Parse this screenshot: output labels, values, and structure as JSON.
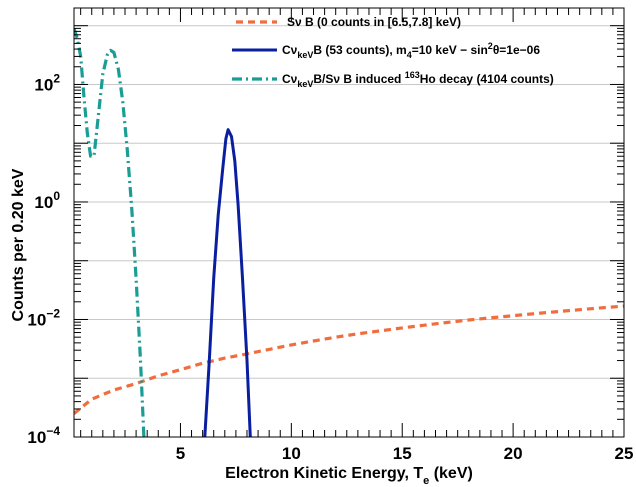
{
  "chart_data": {
    "type": "line",
    "xlabel": "Electron Kinetic Energy, T",
    "xlabel_sub": "e",
    "xlabel_unit": " (keV)",
    "ylabel": "Counts per 0.20 keV",
    "xlim": [
      0.2,
      25
    ],
    "ylim": [
      0.0001,
      2000
    ],
    "yscale": "log",
    "grid": "horizontal",
    "legend_position": "top-right",
    "x_ticks": [
      5,
      10,
      15,
      20,
      25
    ],
    "y_ticks": [
      {
        "value": 0.0001,
        "base": "10",
        "exp": "−4"
      },
      {
        "value": 0.01,
        "base": "10",
        "exp": "−2"
      },
      {
        "value": 1,
        "base": "10",
        "exp": "0"
      },
      {
        "value": 100,
        "base": "10",
        "exp": "2"
      }
    ],
    "series": [
      {
        "name": "Sν B (0 counts in [6.5,7.8] keV)",
        "color": "#f26d3d",
        "style": "dashed",
        "x": [
          0.2,
          1,
          2,
          3,
          4,
          5,
          6,
          7,
          8,
          9,
          10,
          11,
          12,
          13,
          14,
          15,
          16,
          17,
          18,
          19,
          20,
          21,
          22,
          23,
          24,
          25
        ],
        "y": [
          0.00025,
          0.00044,
          0.00063,
          0.00081,
          0.0011,
          0.0014,
          0.0018,
          0.0022,
          0.0026,
          0.0031,
          0.0037,
          0.0043,
          0.005,
          0.0057,
          0.0064,
          0.0072,
          0.008,
          0.0089,
          0.0098,
          0.0107,
          0.0116,
          0.0126,
          0.0136,
          0.0147,
          0.0158,
          0.0169
        ]
      },
      {
        "name": "Cν_keV B (53 counts), m_4=10 keV − sin^2θ=1e−06",
        "color": "#0a1fa0",
        "style": "solid",
        "x": [
          6.1,
          6.3,
          6.5,
          6.7,
          6.9,
          7.05,
          7.15,
          7.3,
          7.45,
          7.6,
          7.8,
          8.0,
          8.15
        ],
        "y": [
          0.0001,
          0.002,
          0.05,
          0.6,
          3.5,
          12,
          17,
          13,
          5,
          0.9,
          0.05,
          0.002,
          0.0001
        ]
      },
      {
        "name": "Cν_keV B/Sν B induced 163Ho decay (4104 counts)",
        "color": "#1a9d95",
        "style": "dashdot",
        "x": [
          0.2,
          0.35,
          0.5,
          0.65,
          0.8,
          0.95,
          1.1,
          1.3,
          1.5,
          1.7,
          1.85,
          2.0,
          2.2,
          2.4,
          2.6,
          2.8,
          3.0,
          3.2,
          3.35
        ],
        "y": [
          900,
          600,
          300,
          60,
          15,
          6,
          6,
          30,
          150,
          320,
          380,
          350,
          180,
          50,
          8,
          0.8,
          0.05,
          0.002,
          0.0001
        ]
      }
    ]
  },
  "legend": [
    {
      "main": "Sν B (0 counts in [6.5,7.8] keV)"
    },
    {
      "p1": "Cν",
      "sub1": "keV",
      "p2": "B (53 counts), m",
      "sub2": "4",
      "p3": "=10 keV − sin",
      "sup1": "2",
      "p4": "θ=1e−06"
    },
    {
      "p1": "Cν",
      "sub1": "keV",
      "p2": "B/Sν B induced ",
      "sup1": "163",
      "p3": "Ho decay (4104 counts)"
    }
  ]
}
